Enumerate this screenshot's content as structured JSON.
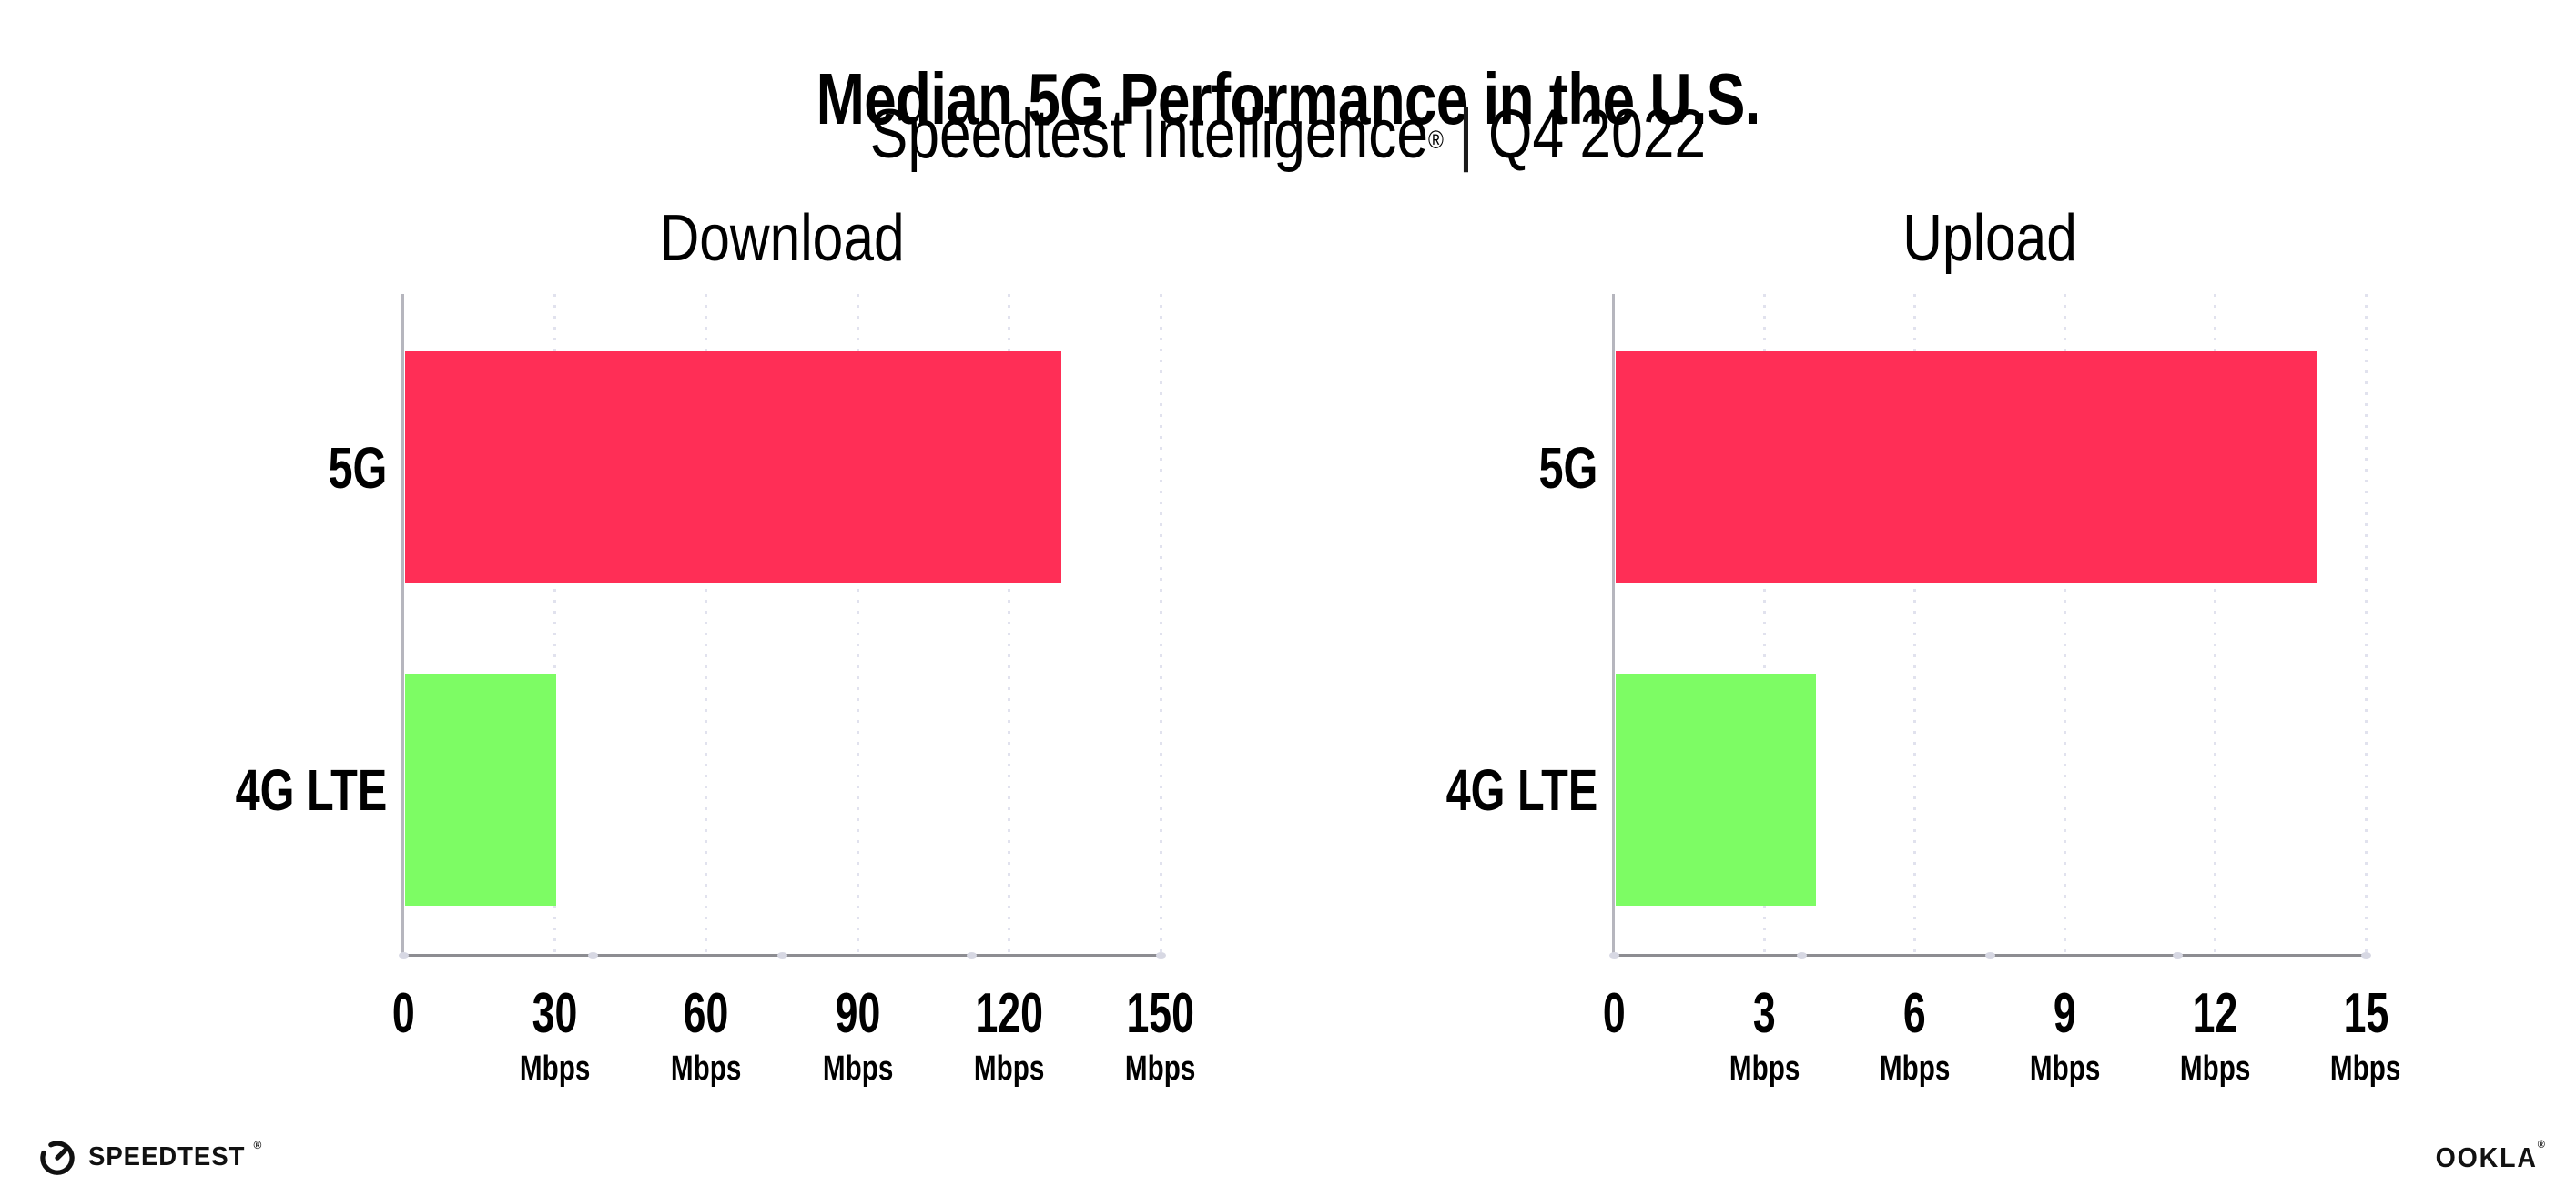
{
  "header": {
    "title": "Median 5G Performance in the U.S.",
    "subtitle": {
      "brand": "Speedtest Intelligence",
      "reg": "®",
      "separator": "|",
      "period": "Q4 2022"
    }
  },
  "chart_data": [
    {
      "type": "bar",
      "orientation": "horizontal",
      "title": "Download",
      "categories": [
        "5G",
        "4G LTE"
      ],
      "values": [
        130,
        30
      ],
      "unit": "Mbps",
      "xlim": [
        0,
        150
      ],
      "xticks": [
        0,
        30,
        60,
        90,
        120,
        150
      ],
      "bar_colors": [
        "#ff2e56",
        "#7dfc64"
      ],
      "grid": "vertical-dotted",
      "legend": "none"
    },
    {
      "type": "bar",
      "orientation": "horizontal",
      "title": "Upload",
      "categories": [
        "5G",
        "4G LTE"
      ],
      "values": [
        14,
        4
      ],
      "unit": "Mbps",
      "xlim": [
        0,
        15
      ],
      "xticks": [
        0,
        3,
        6,
        9,
        12,
        15
      ],
      "bar_colors": [
        "#ff2e56",
        "#7dfc64"
      ],
      "grid": "vertical-dotted",
      "legend": "none"
    }
  ],
  "footer": {
    "speedtest_wordmark": "SPEEDTEST",
    "speedtest_reg": "®",
    "ookla_wordmark": "OOKLA",
    "ookla_reg": "®"
  },
  "colors": {
    "bar_5g": "#ff2e56",
    "bar_4g_lte": "#7dfc64",
    "gridline": "#e1e2ee",
    "x_axis": "#8d8d92",
    "y_axis": "#b6b6be",
    "text": "#000000",
    "background": "#ffffff"
  }
}
